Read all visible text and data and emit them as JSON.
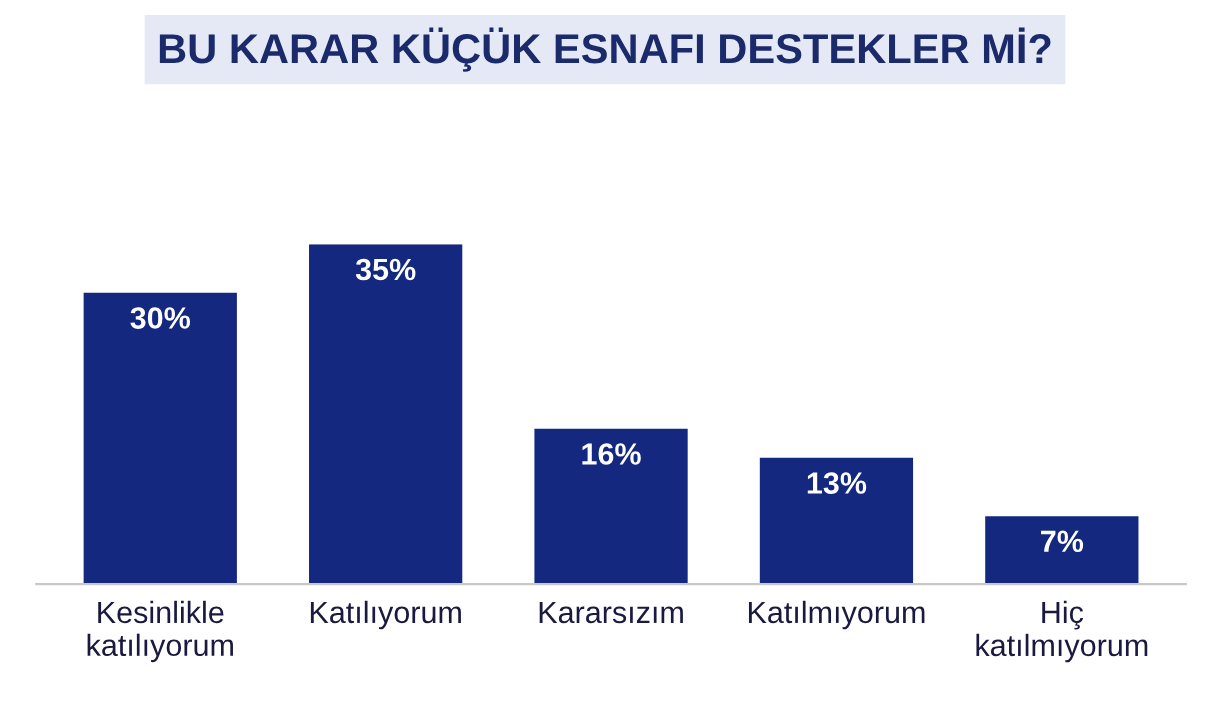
{
  "chart_data": {
    "type": "bar",
    "title": "BU KARAR KÜÇÜK ESNAFI DESTEKLER Mİ?",
    "categories": [
      "Kesinlikle\nkatılıyorum",
      "Katılıyorum",
      "Kararsızım",
      "Katılmıyorum",
      "Hiç\nkatılmıyorum"
    ],
    "values": [
      30,
      35,
      16,
      13,
      7
    ],
    "color": "#14287f",
    "value_labels": [
      "30%",
      "35%",
      "16%",
      "13%",
      "7%"
    ],
    "grid": false,
    "legend": false
  }
}
